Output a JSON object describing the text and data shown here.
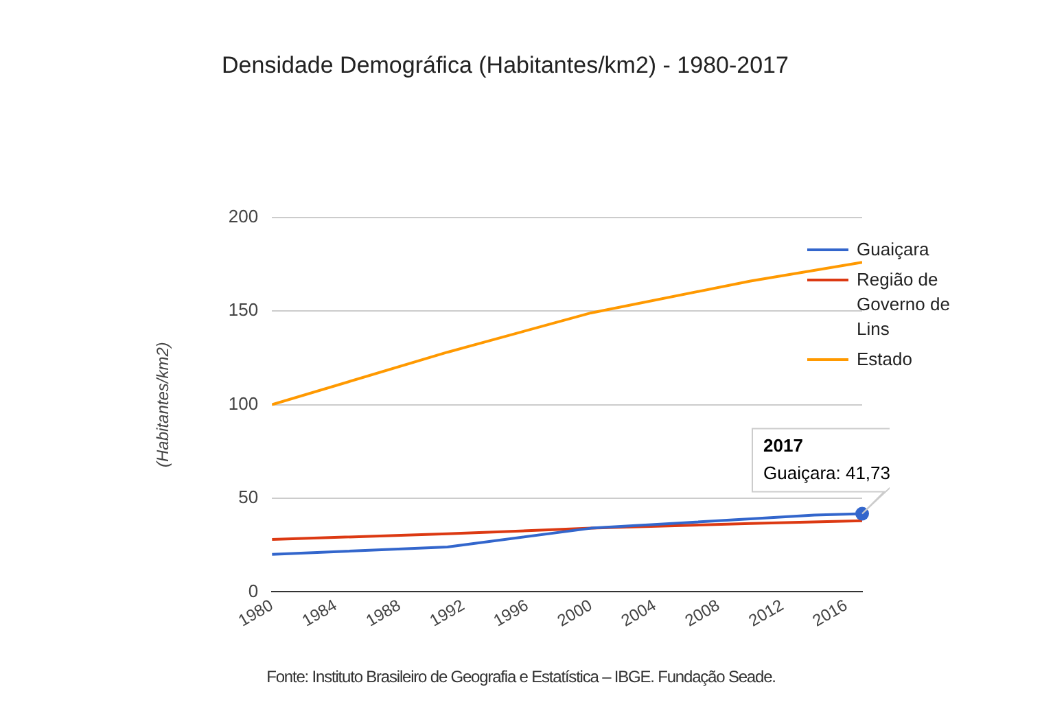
{
  "chart_data": {
    "type": "line",
    "title": "Densidade Demográfica (Habitantes/km2) - 1980-2017",
    "ylabel": "(Habitantes/km2)",
    "series": [
      {
        "name": "Guaiçara",
        "color": "#3366cc",
        "x": [
          1980,
          1991,
          2000,
          2010,
          2014,
          2017
        ],
        "values": [
          20,
          24,
          34,
          39,
          41,
          41.73
        ]
      },
      {
        "name": "Região de Governo de Lins",
        "color": "#dc3912",
        "x": [
          1980,
          1991,
          2000,
          2010,
          2017
        ],
        "values": [
          28,
          31,
          34,
          36.5,
          38
        ]
      },
      {
        "name": "Estado",
        "color": "#ff9900",
        "x": [
          1980,
          1991,
          2000,
          2010,
          2017
        ],
        "values": [
          100,
          128,
          149,
          166,
          176
        ]
      }
    ],
    "xlim": [
      1980,
      2017
    ],
    "xticks": [
      1980,
      1984,
      1988,
      1992,
      1996,
      2000,
      2004,
      2008,
      2012,
      2016
    ],
    "ylim": [
      0,
      200
    ],
    "yticks": [
      0,
      50,
      100,
      150,
      200
    ],
    "grid": "y",
    "legend": "right",
    "marker": "none",
    "line_style": "solid",
    "annotations": [
      "2017",
      {
        "text": "Guaiçara: 41,73",
        "x": 2017,
        "y": 41.73
      },
      "Fonte: Instituto Brasileiro de Geografia e Estatística – IBGE. Fundação Seade."
    ]
  }
}
